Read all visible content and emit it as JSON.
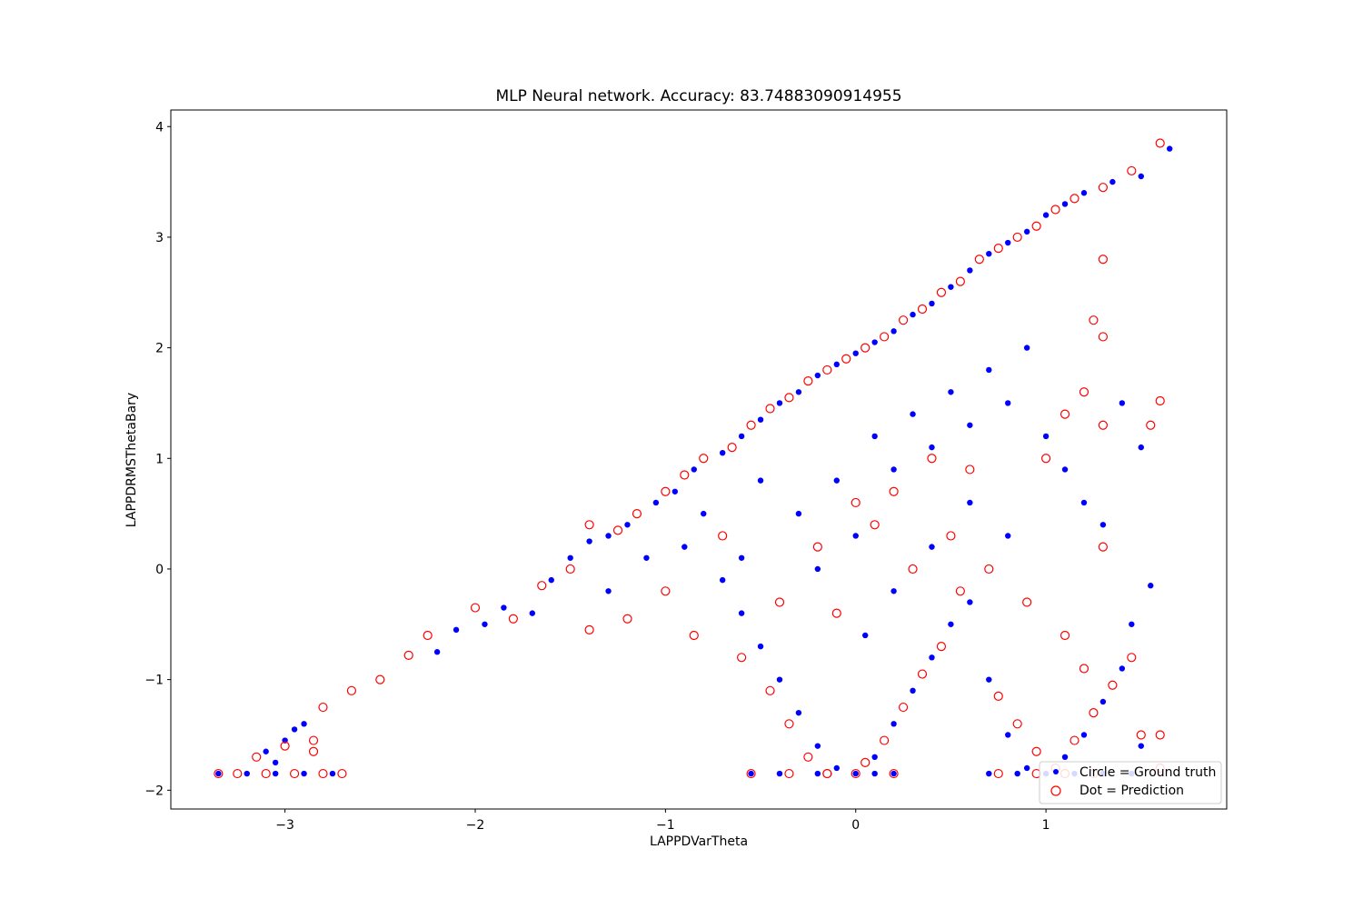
{
  "chart_data": {
    "type": "scatter",
    "title": "MLP Neural network. Accuracy: 83.74883090914955",
    "xlabel": "LAPPDVarTheta",
    "ylabel": "LAPPDRMSThetaBary",
    "xlim": [
      -3.6,
      1.95
    ],
    "ylim": [
      -2.17,
      4.15
    ],
    "x_ticks": [
      {
        "value": -3,
        "label": "−3"
      },
      {
        "value": -2,
        "label": "−2"
      },
      {
        "value": -1,
        "label": "−1"
      },
      {
        "value": 0,
        "label": "0"
      },
      {
        "value": 1,
        "label": "1"
      }
    ],
    "y_ticks": [
      {
        "value": -2,
        "label": "−2"
      },
      {
        "value": -1,
        "label": "−1"
      },
      {
        "value": 0,
        "label": "0"
      },
      {
        "value": 1,
        "label": "1"
      },
      {
        "value": 2,
        "label": "2"
      },
      {
        "value": 3,
        "label": "3"
      },
      {
        "value": 4,
        "label": "4"
      }
    ],
    "grid": false,
    "legend_position": "lower-right",
    "series": [
      {
        "name": "Circle = Ground truth",
        "marker": "filled-dot",
        "color": "#0000ff",
        "points": [
          [
            -3.35,
            -1.85
          ],
          [
            -3.2,
            -1.85
          ],
          [
            -3.05,
            -1.85
          ],
          [
            -2.9,
            -1.85
          ],
          [
            -2.75,
            -1.85
          ],
          [
            -3.1,
            -1.65
          ],
          [
            -3.0,
            -1.55
          ],
          [
            -2.95,
            -1.45
          ],
          [
            -2.9,
            -1.4
          ],
          [
            -3.05,
            -1.75
          ],
          [
            -2.2,
            -0.75
          ],
          [
            -2.1,
            -0.55
          ],
          [
            -1.95,
            -0.5
          ],
          [
            -1.85,
            -0.35
          ],
          [
            -1.7,
            -0.4
          ],
          [
            -1.6,
            -0.1
          ],
          [
            -1.5,
            0.1
          ],
          [
            -1.4,
            0.25
          ],
          [
            -1.3,
            0.3
          ],
          [
            -1.2,
            0.4
          ],
          [
            -1.05,
            0.6
          ],
          [
            -0.95,
            0.7
          ],
          [
            -0.85,
            0.9
          ],
          [
            -0.7,
            1.05
          ],
          [
            -0.6,
            1.2
          ],
          [
            -0.5,
            1.35
          ],
          [
            -0.4,
            1.5
          ],
          [
            -0.3,
            1.6
          ],
          [
            -0.2,
            1.75
          ],
          [
            -0.1,
            1.85
          ],
          [
            0.0,
            1.95
          ],
          [
            0.1,
            2.05
          ],
          [
            0.2,
            2.15
          ],
          [
            0.3,
            2.3
          ],
          [
            0.4,
            2.4
          ],
          [
            0.5,
            2.55
          ],
          [
            0.6,
            2.7
          ],
          [
            0.7,
            2.85
          ],
          [
            0.8,
            2.95
          ],
          [
            0.9,
            3.05
          ],
          [
            1.0,
            3.2
          ],
          [
            1.1,
            3.3
          ],
          [
            1.2,
            3.4
          ],
          [
            1.35,
            3.5
          ],
          [
            1.5,
            3.55
          ],
          [
            1.65,
            3.8
          ],
          [
            -0.9,
            0.2
          ],
          [
            -0.7,
            -0.1
          ],
          [
            -0.6,
            -0.4
          ],
          [
            -0.5,
            -0.7
          ],
          [
            -0.4,
            -1.0
          ],
          [
            -0.3,
            -1.3
          ],
          [
            -0.2,
            -1.6
          ],
          [
            -0.1,
            -1.8
          ],
          [
            0.0,
            -1.85
          ],
          [
            0.1,
            -1.7
          ],
          [
            0.2,
            -1.4
          ],
          [
            0.3,
            -1.1
          ],
          [
            0.4,
            -0.8
          ],
          [
            0.5,
            -0.5
          ],
          [
            0.6,
            -0.3
          ],
          [
            0.7,
            -1.0
          ],
          [
            0.8,
            -1.5
          ],
          [
            0.9,
            -1.8
          ],
          [
            1.0,
            -1.85
          ],
          [
            1.1,
            -1.7
          ],
          [
            1.2,
            -1.5
          ],
          [
            1.3,
            -1.2
          ],
          [
            1.4,
            -0.9
          ],
          [
            1.5,
            -1.6
          ],
          [
            1.55,
            -0.15
          ],
          [
            -0.3,
            0.5
          ],
          [
            -0.1,
            0.8
          ],
          [
            0.1,
            1.2
          ],
          [
            0.2,
            0.9
          ],
          [
            0.3,
            1.4
          ],
          [
            0.4,
            1.1
          ],
          [
            0.5,
            1.6
          ],
          [
            0.6,
            1.3
          ],
          [
            0.7,
            1.8
          ],
          [
            0.8,
            1.5
          ],
          [
            0.9,
            2.0
          ],
          [
            1.0,
            1.2
          ],
          [
            1.1,
            0.9
          ],
          [
            1.2,
            0.6
          ],
          [
            1.3,
            0.4
          ],
          [
            1.4,
            1.5
          ],
          [
            1.5,
            1.1
          ],
          [
            1.45,
            -0.5
          ],
          [
            0.0,
            0.3
          ],
          [
            -0.2,
            0.0
          ],
          [
            0.2,
            -0.2
          ],
          [
            0.4,
            0.2
          ],
          [
            0.6,
            0.6
          ],
          [
            0.8,
            0.3
          ],
          [
            -0.5,
            0.8
          ],
          [
            -0.8,
            0.5
          ],
          [
            -1.1,
            0.1
          ],
          [
            -1.3,
            -0.2
          ],
          [
            -0.6,
            0.1
          ],
          [
            0.05,
            -0.6
          ],
          [
            -0.55,
            -1.85
          ],
          [
            -0.4,
            -1.85
          ],
          [
            -0.2,
            -1.85
          ],
          [
            0.1,
            -1.85
          ],
          [
            0.2,
            -1.85
          ],
          [
            0.7,
            -1.85
          ],
          [
            0.85,
            -1.85
          ],
          [
            1.15,
            -1.85
          ],
          [
            1.3,
            -1.85
          ],
          [
            1.45,
            -1.85
          ]
        ]
      },
      {
        "name": "Dot = Prediction",
        "marker": "hollow-circle",
        "color": "#ff0000",
        "points": [
          [
            -3.35,
            -1.85
          ],
          [
            -3.25,
            -1.85
          ],
          [
            -3.1,
            -1.85
          ],
          [
            -2.95,
            -1.85
          ],
          [
            -2.8,
            -1.85
          ],
          [
            -2.7,
            -1.85
          ],
          [
            -3.15,
            -1.7
          ],
          [
            -3.0,
            -1.6
          ],
          [
            -2.85,
            -1.55
          ],
          [
            -2.85,
            -1.65
          ],
          [
            -2.8,
            -1.25
          ],
          [
            -2.65,
            -1.1
          ],
          [
            -2.5,
            -1.0
          ],
          [
            -2.35,
            -0.78
          ],
          [
            -2.25,
            -0.6
          ],
          [
            -2.0,
            -0.35
          ],
          [
            -1.8,
            -0.45
          ],
          [
            -1.65,
            -0.15
          ],
          [
            -1.5,
            0.0
          ],
          [
            -1.4,
            0.4
          ],
          [
            -1.25,
            0.35
          ],
          [
            -1.15,
            0.5
          ],
          [
            -1.0,
            0.7
          ],
          [
            -0.9,
            0.85
          ],
          [
            -0.8,
            1.0
          ],
          [
            -0.65,
            1.1
          ],
          [
            -0.55,
            1.3
          ],
          [
            -0.45,
            1.45
          ],
          [
            -0.35,
            1.55
          ],
          [
            -0.25,
            1.7
          ],
          [
            -0.15,
            1.8
          ],
          [
            -0.05,
            1.9
          ],
          [
            0.05,
            2.0
          ],
          [
            0.15,
            2.1
          ],
          [
            0.25,
            2.25
          ],
          [
            0.35,
            2.35
          ],
          [
            0.45,
            2.5
          ],
          [
            0.55,
            2.6
          ],
          [
            0.65,
            2.8
          ],
          [
            0.75,
            2.9
          ],
          [
            0.85,
            3.0
          ],
          [
            0.95,
            3.1
          ],
          [
            1.05,
            3.25
          ],
          [
            1.15,
            3.35
          ],
          [
            1.3,
            3.45
          ],
          [
            1.45,
            3.6
          ],
          [
            1.6,
            3.85
          ],
          [
            -1.4,
            -0.55
          ],
          [
            -1.2,
            -0.45
          ],
          [
            -1.0,
            -0.2
          ],
          [
            -0.85,
            -0.6
          ],
          [
            -0.6,
            -0.8
          ],
          [
            -0.45,
            -1.1
          ],
          [
            -0.35,
            -1.4
          ],
          [
            -0.25,
            -1.7
          ],
          [
            -0.15,
            -1.85
          ],
          [
            0.05,
            -1.75
          ],
          [
            0.15,
            -1.55
          ],
          [
            0.25,
            -1.25
          ],
          [
            0.35,
            -0.95
          ],
          [
            0.45,
            -0.7
          ],
          [
            0.55,
            -0.2
          ],
          [
            0.75,
            -1.15
          ],
          [
            0.85,
            -1.4
          ],
          [
            0.95,
            -1.65
          ],
          [
            1.05,
            -1.8
          ],
          [
            1.15,
            -1.55
          ],
          [
            1.25,
            -1.3
          ],
          [
            1.35,
            -1.05
          ],
          [
            1.45,
            -0.8
          ],
          [
            1.5,
            -1.5
          ],
          [
            1.6,
            -1.5
          ],
          [
            -0.2,
            0.2
          ],
          [
            0.0,
            0.6
          ],
          [
            0.1,
            0.4
          ],
          [
            0.3,
            0.0
          ],
          [
            0.5,
            0.3
          ],
          [
            0.7,
            0.0
          ],
          [
            0.9,
            -0.3
          ],
          [
            1.1,
            -0.6
          ],
          [
            1.2,
            -0.9
          ],
          [
            1.3,
            0.2
          ],
          [
            1.3,
            1.3
          ],
          [
            1.2,
            1.6
          ],
          [
            1.1,
            1.4
          ],
          [
            1.0,
            1.0
          ],
          [
            1.6,
            1.52
          ],
          [
            1.55,
            1.3
          ],
          [
            1.3,
            2.1
          ],
          [
            1.3,
            2.8
          ],
          [
            1.25,
            2.25
          ],
          [
            -0.7,
            0.3
          ],
          [
            -0.4,
            -0.3
          ],
          [
            -0.1,
            -0.4
          ],
          [
            0.2,
            0.7
          ],
          [
            0.4,
            1.0
          ],
          [
            0.6,
            0.9
          ],
          [
            -0.55,
            -1.85
          ],
          [
            -0.35,
            -1.85
          ],
          [
            -0.15,
            -1.85
          ],
          [
            0.0,
            -1.85
          ],
          [
            0.2,
            -1.85
          ],
          [
            0.75,
            -1.85
          ],
          [
            0.95,
            -1.85
          ],
          [
            1.1,
            -1.85
          ],
          [
            1.25,
            -1.85
          ],
          [
            1.6,
            -1.8
          ]
        ]
      }
    ]
  }
}
